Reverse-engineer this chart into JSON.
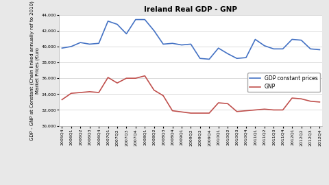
{
  "title": "Ireland Real GDP - GNP",
  "ylabel": "GDP - GNP at Constant (Chain linked annually ref to 2010)\nMarket Prices (€uro",
  "ylim": [
    30000,
    44000
  ],
  "yticks": [
    30000,
    32000,
    34000,
    36000,
    38000,
    40000,
    42000,
    44000
  ],
  "labels": [
    "2005Q4",
    "2006Q1",
    "2006Q2",
    "2006Q3",
    "2006Q4",
    "2007Q1",
    "2007Q2",
    "2007Q3",
    "2007Q4",
    "2008Q1",
    "2008Q2",
    "2008Q3",
    "2008Q4",
    "2009Q1",
    "2009Q2",
    "2009Q3",
    "2009Q4",
    "2010Q1",
    "2010Q2",
    "2010Q3",
    "2010Q4",
    "2011Q1",
    "2011Q2",
    "2011Q3",
    "2011Q4",
    "2012Q1",
    "2012Q2",
    "2012Q3",
    "2012Q4"
  ],
  "gdp": [
    39800,
    40000,
    40500,
    40300,
    40400,
    43200,
    42800,
    41600,
    43400,
    43400,
    42000,
    40300,
    40400,
    40200,
    40300,
    38500,
    38400,
    39800,
    39100,
    38500,
    38600,
    40900,
    40100,
    39700,
    39700,
    40900,
    40800,
    39700,
    39600
  ],
  "gnp": [
    33300,
    34100,
    34200,
    34300,
    34200,
    36100,
    35400,
    36000,
    36000,
    36300,
    34500,
    33800,
    31900,
    31750,
    31600,
    31600,
    31600,
    32900,
    32800,
    31800,
    31900,
    32000,
    32100,
    32000,
    32000,
    33500,
    33400,
    33100,
    33000
  ],
  "gdp_color": "#4472c4",
  "gnp_color": "#c0504d",
  "background_color": "#e8e8e8",
  "plot_bg_color": "#ffffff",
  "legend_gdp": "GDP constant prices",
  "legend_gnp": "GNP",
  "title_fontsize": 7.5,
  "ylabel_fontsize": 5.0,
  "tick_fontsize": 4.5,
  "legend_fontsize": 5.5,
  "linewidth": 1.2
}
